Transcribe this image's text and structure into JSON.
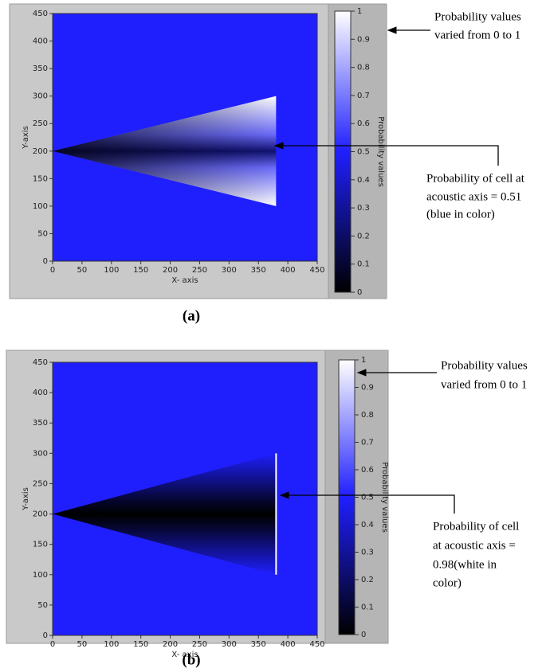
{
  "chart_data": [
    {
      "type": "intensity",
      "panel_label": "(a)",
      "xlabel": "X- axis",
      "ylabel": "Y-axis",
      "colorbar_label": "Probability values",
      "xlim": [
        0,
        450
      ],
      "ylim": [
        0,
        450
      ],
      "xticks": [
        0,
        50,
        100,
        150,
        200,
        250,
        300,
        350,
        400,
        450
      ],
      "yticks": [
        0,
        50,
        100,
        150,
        200,
        250,
        300,
        350,
        400,
        450
      ],
      "clim": [
        0,
        1
      ],
      "cticks": [
        0,
        0.1,
        0.2,
        0.3,
        0.4,
        0.5,
        0.6,
        0.7,
        0.8,
        0.9,
        1
      ],
      "cone": {
        "apex": [
          0,
          200
        ],
        "base_x": 380,
        "base_y": [
          100,
          300
        ]
      },
      "annotations": [
        [
          "Probability values",
          "varied from 0 to 1"
        ],
        [
          "Probability of cell at",
          "acoustic axis = 0.51",
          "(blue in color)"
        ]
      ]
    },
    {
      "type": "intensity",
      "panel_label": "(b)",
      "xlabel": "X- axis",
      "ylabel": "Y-axis",
      "colorbar_label": "Probability values",
      "xlim": [
        0,
        450
      ],
      "ylim": [
        0,
        450
      ],
      "xticks": [
        0,
        50,
        100,
        150,
        200,
        250,
        300,
        350,
        400,
        450
      ],
      "yticks": [
        0,
        50,
        100,
        150,
        200,
        250,
        300,
        350,
        400,
        450
      ],
      "clim": [
        0,
        1
      ],
      "cticks": [
        0,
        0.1,
        0.2,
        0.3,
        0.4,
        0.5,
        0.6,
        0.7,
        0.8,
        0.9,
        1
      ],
      "cone": {
        "apex": [
          0,
          200
        ],
        "base_x": 380,
        "base_y": [
          100,
          300
        ]
      },
      "annotations": [
        [
          "Probability values",
          "varied from 0 to 1"
        ],
        [
          "Probability of cell",
          "at acoustic axis =",
          "0.98(white in",
          "color)"
        ]
      ]
    }
  ]
}
